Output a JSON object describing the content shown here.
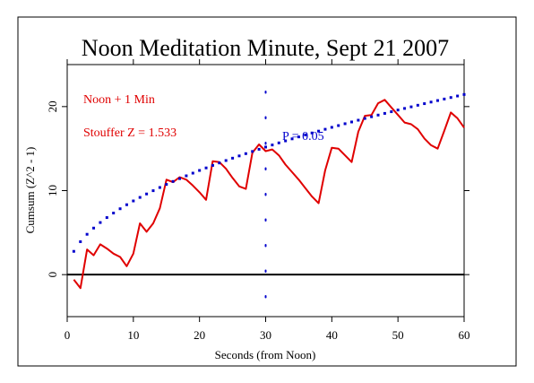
{
  "chart_data": {
    "type": "line",
    "title": "Noon Meditation Minute, Sept 21 2007",
    "xlabel": "Seconds (from Noon)",
    "ylabel": "Cumsum (Z^2 - 1)",
    "xlim": [
      0,
      60
    ],
    "ylim": [
      -5,
      25
    ],
    "x_ticks": [
      0,
      10,
      20,
      30,
      40,
      50,
      60
    ],
    "y_ticks": [
      0,
      10,
      20
    ],
    "annotations": {
      "window_label": "Noon + 1 Min",
      "stouffer_label": "Stouffer Z = 1.533",
      "p_label": "P = 0.05"
    },
    "reference_lines": {
      "zero_line": 0,
      "vertical_marker_x": 30
    },
    "colors": {
      "series": "#e00000",
      "threshold": "#0000cc",
      "axis": "#000000"
    },
    "series": [
      {
        "x": [
          1,
          2,
          3,
          4,
          5,
          6,
          7,
          8,
          9,
          10,
          11,
          12,
          13,
          14,
          15,
          16,
          17,
          18,
          19,
          20,
          21,
          22,
          23,
          24,
          25,
          26,
          27,
          28,
          29,
          30,
          31,
          32,
          33,
          34,
          35,
          36,
          37,
          38,
          39,
          40,
          41,
          42,
          43,
          44,
          45,
          46,
          47,
          48,
          49,
          50,
          51,
          52,
          53,
          54,
          55,
          56,
          57,
          58,
          59,
          60
        ],
        "values": [
          -0.6,
          -1.6,
          3.0,
          2.3,
          3.6,
          3.1,
          2.5,
          2.1,
          1.0,
          2.5,
          6.1,
          5.1,
          6.1,
          7.9,
          11.3,
          11.0,
          11.6,
          11.3,
          10.6,
          9.8,
          8.9,
          13.5,
          13.4,
          12.6,
          11.5,
          10.5,
          10.2,
          14.5,
          15.5,
          14.7,
          14.9,
          14.2,
          13.1,
          12.2,
          11.3,
          10.3,
          9.3,
          8.5,
          12.4,
          15.1,
          15.0,
          14.2,
          13.4,
          17.0,
          18.9,
          19.0,
          20.4,
          20.8,
          19.9,
          19.0,
          18.1,
          17.9,
          17.3,
          16.2,
          15.4,
          15.0,
          17.1,
          19.3,
          18.6,
          17.5
        ]
      },
      {
        "x": [
          1,
          2,
          3,
          4,
          5,
          6,
          7,
          8,
          9,
          10,
          11,
          12,
          13,
          14,
          15,
          16,
          17,
          18,
          19,
          20,
          21,
          22,
          23,
          24,
          25,
          26,
          27,
          28,
          29,
          30,
          31,
          32,
          33,
          34,
          35,
          36,
          37,
          38,
          39,
          40,
          41,
          42,
          43,
          44,
          45,
          46,
          47,
          48,
          49,
          50,
          51,
          52,
          53,
          54,
          55,
          56,
          57,
          58,
          59,
          60
        ],
        "values": [
          2.77,
          3.92,
          4.8,
          5.54,
          6.2,
          6.79,
          7.33,
          7.84,
          8.32,
          8.77,
          9.19,
          9.6,
          9.99,
          10.37,
          10.74,
          11.09,
          11.43,
          11.76,
          12.08,
          12.4,
          12.7,
          13.0,
          13.29,
          13.58,
          13.86,
          14.13,
          14.4,
          14.66,
          14.92,
          15.18,
          15.43,
          15.68,
          15.92,
          16.16,
          16.39,
          16.63,
          16.86,
          17.08,
          17.3,
          17.53,
          17.74,
          17.96,
          18.17,
          18.38,
          18.59,
          18.79,
          18.99,
          19.19,
          19.39,
          19.59,
          19.78,
          19.97,
          20.16,
          20.35,
          20.54,
          20.72,
          20.9,
          21.08,
          21.26,
          21.44
        ]
      }
    ]
  }
}
